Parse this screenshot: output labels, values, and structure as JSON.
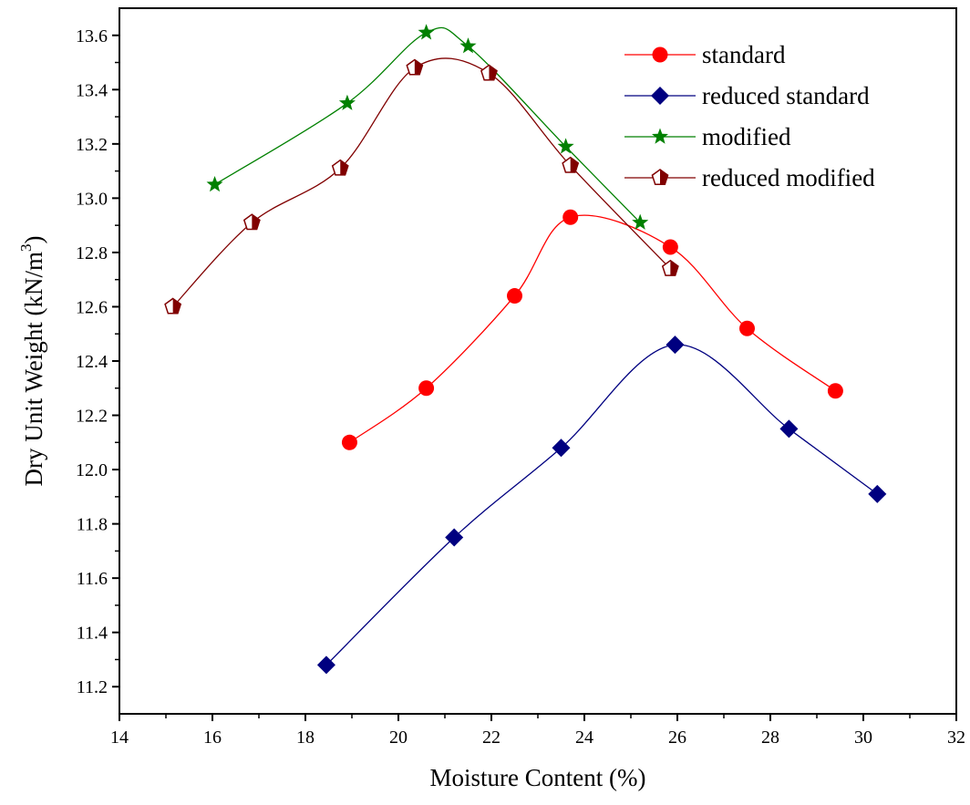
{
  "chart_data": {
    "type": "line",
    "xlabel": "Moisture Content (%)",
    "ylabel": "Dry Unit Weight (kN/m3)",
    "ylabel_parts": {
      "base": "Dry Unit Weight (kN/m",
      "sup": "3",
      "close": ")"
    },
    "xlim": [
      14,
      32
    ],
    "ylim": [
      11.1,
      13.7
    ],
    "xticks": [
      14,
      16,
      18,
      20,
      22,
      24,
      26,
      28,
      30,
      32
    ],
    "yticks": [
      11.2,
      11.4,
      11.6,
      11.8,
      12.0,
      12.2,
      12.4,
      12.6,
      12.8,
      13.0,
      13.2,
      13.4,
      13.6
    ],
    "ytick_labels": [
      "11.2",
      "11.4",
      "11.6",
      "11.8",
      "12.0",
      "12.2",
      "12.4",
      "12.6",
      "12.8",
      "13.0",
      "13.2",
      "13.4",
      "13.6"
    ],
    "grid": false,
    "legend_position": "top-right",
    "series": [
      {
        "name": "standard",
        "marker": "circle",
        "color": "#ff0000",
        "x": [
          18.95,
          20.6,
          22.5,
          23.7,
          25.85,
          27.5,
          29.4
        ],
        "y": [
          12.1,
          12.3,
          12.64,
          12.93,
          12.82,
          12.52,
          12.29
        ]
      },
      {
        "name": "reduced standard",
        "marker": "diamond",
        "color": "#000080",
        "x": [
          18.45,
          21.2,
          23.5,
          25.95,
          28.4,
          30.3
        ],
        "y": [
          11.28,
          11.75,
          12.08,
          12.46,
          12.15,
          11.91
        ]
      },
      {
        "name": "modified",
        "marker": "star",
        "color": "#008000",
        "x": [
          16.05,
          18.9,
          20.6,
          21.5,
          23.6,
          25.2
        ],
        "y": [
          13.05,
          13.35,
          13.61,
          13.56,
          13.19,
          12.91
        ]
      },
      {
        "name": "reduced modified",
        "marker": "pentagon",
        "color": "#800000",
        "x": [
          15.15,
          16.85,
          18.75,
          20.35,
          21.95,
          23.7,
          25.85
        ],
        "y": [
          12.6,
          12.91,
          13.11,
          13.48,
          13.46,
          13.12,
          12.74
        ]
      }
    ]
  }
}
